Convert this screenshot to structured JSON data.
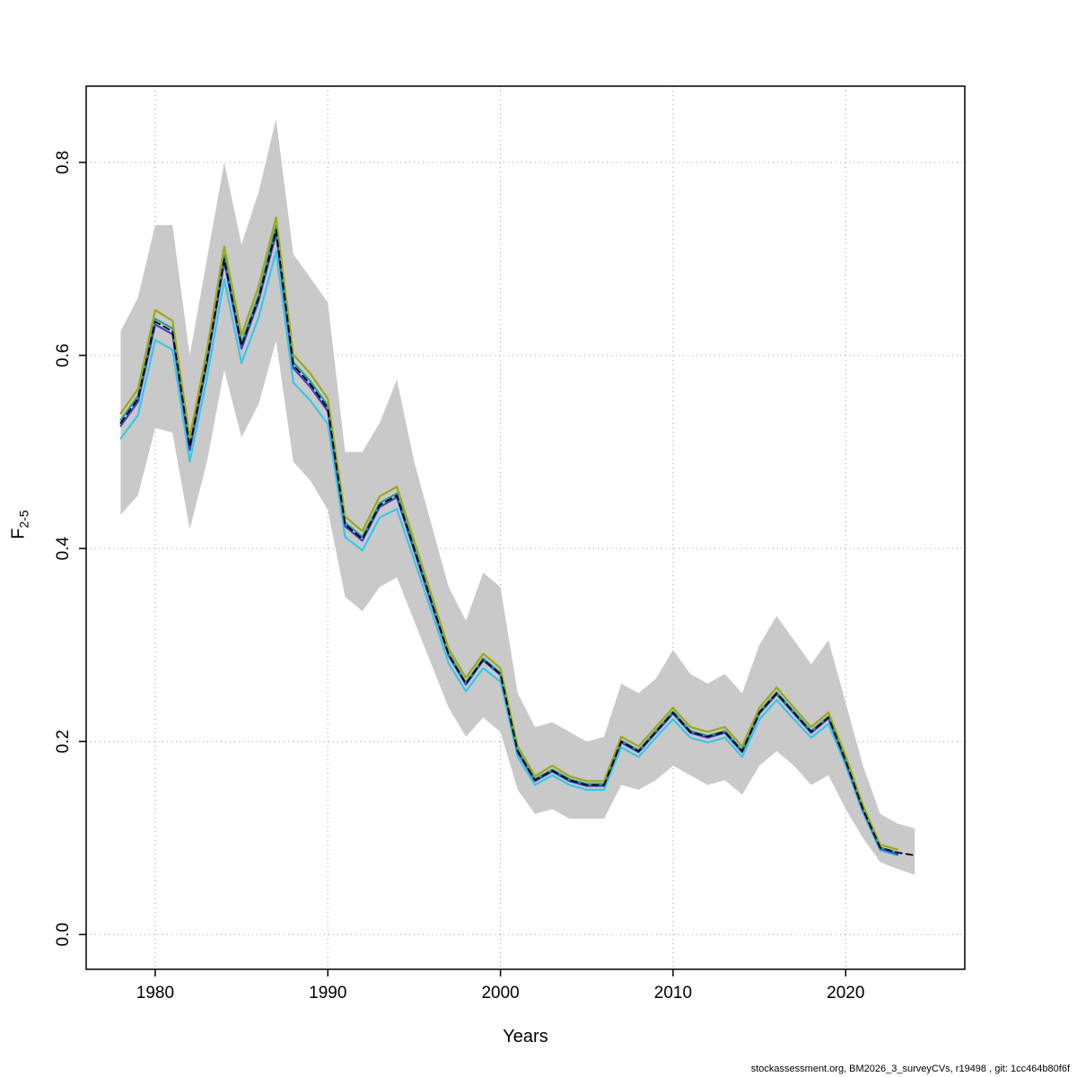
{
  "figure": {
    "xlabel": "Years",
    "ylabel_base": "F",
    "ylabel_sub": "2-5",
    "footer": "stockassessment.org, BM2026_3_surveyCVs, r19498 , git: 1cc464b80f6f"
  },
  "chart_data": {
    "type": "line",
    "title": "",
    "xlabel": "Years",
    "ylabel": "F_{2-5}",
    "grid": true,
    "legend": "none",
    "xlim": [
      1976.0,
      2026.9
    ],
    "ylim": [
      -0.036,
      0.879
    ],
    "xticks": [
      1980,
      1990,
      2000,
      2010,
      2020
    ],
    "yticks": [
      0.0,
      0.2,
      0.4,
      0.6,
      0.8
    ],
    "ytick_labels": [
      "0.0",
      "0.2",
      "0.4",
      "0.6",
      "0.8"
    ],
    "x": [
      1978,
      1979,
      1980,
      1981,
      1982,
      1983,
      1984,
      1985,
      1986,
      1987,
      1988,
      1989,
      1990,
      1991,
      1992,
      1993,
      1994,
      1995,
      1996,
      1997,
      1998,
      1999,
      2000,
      2001,
      2002,
      2003,
      2004,
      2005,
      2006,
      2007,
      2008,
      2009,
      2010,
      2011,
      2012,
      2013,
      2014,
      2015,
      2016,
      2017,
      2018,
      2019,
      2020,
      2021,
      2022,
      2023,
      2024
    ],
    "band": {
      "color": "#c9c9c9",
      "lower": [
        0.435,
        0.455,
        0.525,
        0.52,
        0.42,
        0.49,
        0.585,
        0.515,
        0.55,
        0.615,
        0.49,
        0.47,
        0.44,
        0.35,
        0.335,
        0.36,
        0.37,
        0.325,
        0.28,
        0.235,
        0.205,
        0.225,
        0.21,
        0.15,
        0.125,
        0.13,
        0.12,
        0.12,
        0.12,
        0.155,
        0.15,
        0.16,
        0.175,
        0.165,
        0.155,
        0.16,
        0.145,
        0.175,
        0.19,
        0.175,
        0.155,
        0.165,
        0.13,
        0.1,
        0.075,
        0.068,
        0.062
      ],
      "upper": [
        0.625,
        0.66,
        0.735,
        0.735,
        0.6,
        0.7,
        0.8,
        0.715,
        0.77,
        0.845,
        0.705,
        0.68,
        0.655,
        0.5,
        0.5,
        0.53,
        0.575,
        0.49,
        0.425,
        0.36,
        0.325,
        0.375,
        0.36,
        0.25,
        0.215,
        0.22,
        0.21,
        0.2,
        0.205,
        0.26,
        0.25,
        0.265,
        0.295,
        0.27,
        0.26,
        0.27,
        0.25,
        0.3,
        0.33,
        0.305,
        0.28,
        0.305,
        0.24,
        0.175,
        0.125,
        0.115,
        0.11
      ]
    },
    "series": [
      {
        "name": "run-cyan",
        "color": "#35c8e8",
        "dash": "none",
        "width": 2.2,
        "values": [
          0.514,
          0.538,
          0.616,
          0.606,
          0.49,
          0.577,
          0.679,
          0.592,
          0.64,
          0.708,
          0.572,
          0.553,
          0.529,
          0.412,
          0.398,
          0.432,
          0.441,
          0.388,
          0.335,
          0.281,
          0.252,
          0.276,
          0.262,
          0.184,
          0.155,
          0.165,
          0.155,
          0.15,
          0.15,
          0.194,
          0.184,
          0.204,
          0.223,
          0.204,
          0.199,
          0.204,
          0.184,
          0.223,
          0.243,
          0.223,
          0.204,
          0.218,
          0.175,
          0.126,
          0.087,
          0.082,
          null
        ]
      },
      {
        "name": "run-blue",
        "color": "#4040cf",
        "dash": "none",
        "width": 2.2,
        "values": [
          0.527,
          0.552,
          0.632,
          0.622,
          0.502,
          0.592,
          0.697,
          0.607,
          0.657,
          0.726,
          0.587,
          0.567,
          0.542,
          0.423,
          0.408,
          0.443,
          0.453,
          0.398,
          0.343,
          0.289,
          0.259,
          0.284,
          0.269,
          0.189,
          0.159,
          0.169,
          0.159,
          0.154,
          0.154,
          0.199,
          0.189,
          0.209,
          0.229,
          0.209,
          0.204,
          0.209,
          0.189,
          0.229,
          0.249,
          0.229,
          0.209,
          0.224,
          0.179,
          0.129,
          0.089,
          0.083,
          null
        ]
      },
      {
        "name": "run-teal",
        "color": "#23a08c",
        "dash": "none",
        "width": 2.2,
        "values": [
          0.533,
          0.558,
          0.638,
          0.628,
          0.508,
          0.598,
          0.704,
          0.613,
          0.663,
          0.734,
          0.593,
          0.573,
          0.548,
          0.427,
          0.412,
          0.447,
          0.457,
          0.402,
          0.347,
          0.291,
          0.261,
          0.286,
          0.271,
          0.191,
          0.161,
          0.171,
          0.161,
          0.156,
          0.156,
          0.201,
          0.191,
          0.211,
          0.231,
          0.211,
          0.206,
          0.211,
          0.191,
          0.231,
          0.251,
          0.231,
          0.211,
          0.226,
          0.181,
          0.131,
          0.09,
          0.085,
          null
        ]
      },
      {
        "name": "run-olive",
        "color": "#a0a61c",
        "dash": "none",
        "width": 2.2,
        "values": [
          0.54,
          0.565,
          0.647,
          0.636,
          0.515,
          0.606,
          0.713,
          0.621,
          0.672,
          0.743,
          0.601,
          0.581,
          0.555,
          0.433,
          0.418,
          0.454,
          0.464,
          0.408,
          0.352,
          0.296,
          0.266,
          0.291,
          0.276,
          0.195,
          0.164,
          0.175,
          0.164,
          0.159,
          0.159,
          0.205,
          0.195,
          0.215,
          0.235,
          0.215,
          0.21,
          0.215,
          0.195,
          0.235,
          0.256,
          0.235,
          0.215,
          0.23,
          0.185,
          0.134,
          0.093,
          0.088,
          null
        ]
      },
      {
        "name": "base-dashed",
        "color": "#000000",
        "dash": "7 5",
        "width": 1.8,
        "values": [
          0.53,
          0.555,
          0.635,
          0.625,
          0.505,
          0.595,
          0.7,
          0.61,
          0.66,
          0.73,
          0.59,
          0.57,
          0.545,
          0.425,
          0.41,
          0.445,
          0.455,
          0.4,
          0.345,
          0.29,
          0.26,
          0.285,
          0.27,
          0.19,
          0.16,
          0.17,
          0.16,
          0.155,
          0.155,
          0.2,
          0.19,
          0.21,
          0.23,
          0.21,
          0.205,
          0.21,
          0.19,
          0.23,
          0.25,
          0.23,
          0.21,
          0.225,
          0.18,
          0.13,
          0.09,
          0.085,
          0.082
        ]
      }
    ]
  }
}
